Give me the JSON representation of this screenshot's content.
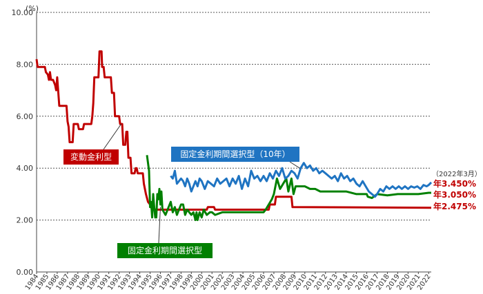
{
  "chart_data": {
    "type": "line",
    "y_unit": "(%)",
    "ylim": [
      0,
      10
    ],
    "yticks": [
      "0.00",
      "2.00",
      "4.00",
      "6.00",
      "8.00",
      "10.00"
    ],
    "xlim": [
      1984,
      2022.25
    ],
    "xticks": [
      "1984",
      "1985",
      "1986",
      "1987",
      "1988",
      "1989",
      "1990",
      "1991",
      "1992",
      "1993",
      "1994",
      "1995",
      "1996",
      "1997",
      "1998",
      "1999",
      "2000",
      "2001",
      "2002",
      "2003",
      "2004",
      "2005",
      "2006",
      "2007",
      "2008",
      "2009",
      "2010",
      "2011",
      "2012",
      "2013",
      "2014",
      "2015",
      "2016",
      "2017",
      "2018",
      "2019",
      "2020",
      "2021",
      "2022"
    ],
    "grid": "horizontal-dashed",
    "series": [
      {
        "name": "変動金利型",
        "color": "#c00000",
        "points": [
          [
            1984.0,
            8.2
          ],
          [
            1984.1,
            7.9
          ],
          [
            1984.8,
            7.9
          ],
          [
            1984.9,
            7.7
          ],
          [
            1985.1,
            7.6
          ],
          [
            1985.2,
            7.4
          ],
          [
            1985.3,
            7.7
          ],
          [
            1985.4,
            7.4
          ],
          [
            1985.6,
            7.4
          ],
          [
            1985.8,
            7.2
          ],
          [
            1985.9,
            7.0
          ],
          [
            1986.0,
            7.5
          ],
          [
            1986.2,
            6.4
          ],
          [
            1986.9,
            6.4
          ],
          [
            1987.0,
            5.8
          ],
          [
            1987.1,
            5.6
          ],
          [
            1987.2,
            5.0
          ],
          [
            1987.5,
            5.0
          ],
          [
            1987.6,
            5.7
          ],
          [
            1988.0,
            5.7
          ],
          [
            1988.1,
            5.5
          ],
          [
            1988.5,
            5.5
          ],
          [
            1988.6,
            5.7
          ],
          [
            1989.3,
            5.7
          ],
          [
            1989.4,
            6.0
          ],
          [
            1989.5,
            6.5
          ],
          [
            1989.6,
            7.5
          ],
          [
            1990.0,
            7.5
          ],
          [
            1990.1,
            8.5
          ],
          [
            1990.3,
            8.5
          ],
          [
            1990.35,
            7.9
          ],
          [
            1990.5,
            7.9
          ],
          [
            1990.6,
            7.5
          ],
          [
            1991.2,
            7.5
          ],
          [
            1991.3,
            6.9
          ],
          [
            1991.5,
            6.9
          ],
          [
            1991.6,
            6.0
          ],
          [
            1992.0,
            6.0
          ],
          [
            1992.1,
            5.7
          ],
          [
            1992.3,
            5.7
          ],
          [
            1992.4,
            4.9
          ],
          [
            1992.6,
            4.9
          ],
          [
            1992.7,
            5.4
          ],
          [
            1992.8,
            5.4
          ],
          [
            1992.9,
            4.4
          ],
          [
            1993.1,
            4.4
          ],
          [
            1993.2,
            3.8
          ],
          [
            1993.5,
            3.8
          ],
          [
            1993.6,
            4.0
          ],
          [
            1993.7,
            4.0
          ],
          [
            1993.8,
            3.8
          ],
          [
            1994.3,
            3.8
          ],
          [
            1994.4,
            3.4
          ],
          [
            1994.6,
            3.0
          ],
          [
            1994.8,
            2.7
          ],
          [
            1995.0,
            2.6
          ],
          [
            1995.2,
            2.4
          ],
          [
            1995.4,
            2.4
          ],
          [
            1995.6,
            2.4
          ],
          [
            1996.0,
            2.4
          ],
          [
            1998.0,
            2.4
          ],
          [
            1999.0,
            2.4
          ],
          [
            2000.5,
            2.4
          ],
          [
            2000.6,
            2.5
          ],
          [
            2001.2,
            2.5
          ],
          [
            2001.3,
            2.4
          ],
          [
            2006.5,
            2.4
          ],
          [
            2006.6,
            2.6
          ],
          [
            2007.1,
            2.6
          ],
          [
            2007.2,
            2.9
          ],
          [
            2008.7,
            2.9
          ],
          [
            2008.8,
            2.5
          ],
          [
            2022.25,
            2.475
          ]
        ]
      },
      {
        "name": "固定金利期間選択型",
        "color": "#008000",
        "points": [
          [
            1994.7,
            4.5
          ],
          [
            1994.9,
            3.9
          ],
          [
            1995.0,
            2.5
          ],
          [
            1995.1,
            2.7
          ],
          [
            1995.2,
            2.1
          ],
          [
            1995.3,
            3.0
          ],
          [
            1995.4,
            2.5
          ],
          [
            1995.5,
            2.1
          ],
          [
            1995.6,
            2.1
          ],
          [
            1995.7,
            3.0
          ],
          [
            1995.8,
            2.8
          ],
          [
            1995.9,
            3.2
          ],
          [
            1996.0,
            2.6
          ],
          [
            1996.1,
            3.1
          ],
          [
            1996.2,
            2.4
          ],
          [
            1996.5,
            2.2
          ],
          [
            1996.7,
            2.4
          ],
          [
            1997.0,
            2.7
          ],
          [
            1997.2,
            2.3
          ],
          [
            1997.4,
            2.5
          ],
          [
            1997.6,
            2.2
          ],
          [
            1997.8,
            2.4
          ],
          [
            1998.0,
            2.6
          ],
          [
            1998.2,
            2.6
          ],
          [
            1998.4,
            2.2
          ],
          [
            1998.6,
            2.4
          ],
          [
            1998.8,
            2.3
          ],
          [
            1999.0,
            2.2
          ],
          [
            1999.2,
            2.3
          ],
          [
            1999.4,
            2.0
          ],
          [
            1999.5,
            2.3
          ],
          [
            1999.6,
            2.0
          ],
          [
            1999.8,
            2.3
          ],
          [
            2000.0,
            2.1
          ],
          [
            2000.2,
            2.4
          ],
          [
            2000.5,
            2.2
          ],
          [
            2000.8,
            2.3
          ],
          [
            2001.0,
            2.3
          ],
          [
            2001.3,
            2.2
          ],
          [
            2002.0,
            2.3
          ],
          [
            2006.0,
            2.3
          ],
          [
            2006.2,
            2.4
          ],
          [
            2006.5,
            2.6
          ],
          [
            2006.8,
            2.8
          ],
          [
            2007.0,
            3.0
          ],
          [
            2007.3,
            3.6
          ],
          [
            2007.6,
            3.2
          ],
          [
            2007.9,
            3.4
          ],
          [
            2008.2,
            3.6
          ],
          [
            2008.4,
            3.1
          ],
          [
            2008.7,
            3.6
          ],
          [
            2008.9,
            3.0
          ],
          [
            2009.1,
            3.3
          ],
          [
            2009.4,
            3.3
          ],
          [
            2010.0,
            3.3
          ],
          [
            2010.5,
            3.2
          ],
          [
            2011.0,
            3.2
          ],
          [
            2011.5,
            3.1
          ],
          [
            2012.0,
            3.1
          ],
          [
            2013.0,
            3.1
          ],
          [
            2014.0,
            3.1
          ],
          [
            2015.0,
            3.0
          ],
          [
            2016.0,
            3.0
          ],
          [
            2016.1,
            2.9
          ],
          [
            2016.5,
            2.85
          ],
          [
            2017.0,
            3.0
          ],
          [
            2018.0,
            2.95
          ],
          [
            2019.0,
            3.0
          ],
          [
            2020.0,
            3.0
          ],
          [
            2021.0,
            3.0
          ],
          [
            2022.0,
            3.05
          ],
          [
            2022.25,
            3.05
          ]
        ]
      },
      {
        "name": "固定金利期間選択型（10年）",
        "color": "#1f74c2",
        "points": [
          [
            1997.0,
            3.7
          ],
          [
            1997.2,
            3.6
          ],
          [
            1997.4,
            3.9
          ],
          [
            1997.6,
            3.4
          ],
          [
            1997.8,
            3.5
          ],
          [
            1998.0,
            3.6
          ],
          [
            1998.2,
            3.5
          ],
          [
            1998.4,
            3.3
          ],
          [
            1998.6,
            3.6
          ],
          [
            1998.8,
            3.4
          ],
          [
            1999.0,
            3.1
          ],
          [
            1999.2,
            3.3
          ],
          [
            1999.4,
            3.5
          ],
          [
            1999.6,
            3.3
          ],
          [
            1999.8,
            3.6
          ],
          [
            2000.0,
            3.5
          ],
          [
            2000.3,
            3.2
          ],
          [
            2000.6,
            3.5
          ],
          [
            2000.9,
            3.4
          ],
          [
            2001.2,
            3.3
          ],
          [
            2001.5,
            3.6
          ],
          [
            2001.8,
            3.4
          ],
          [
            2002.1,
            3.5
          ],
          [
            2002.4,
            3.6
          ],
          [
            2002.7,
            3.3
          ],
          [
            2003.0,
            3.6
          ],
          [
            2003.3,
            3.4
          ],
          [
            2003.6,
            3.7
          ],
          [
            2003.9,
            3.2
          ],
          [
            2004.2,
            3.6
          ],
          [
            2004.5,
            3.3
          ],
          [
            2004.8,
            3.9
          ],
          [
            2005.1,
            3.6
          ],
          [
            2005.4,
            3.7
          ],
          [
            2005.7,
            3.5
          ],
          [
            2006.0,
            3.7
          ],
          [
            2006.3,
            3.5
          ],
          [
            2006.6,
            3.8
          ],
          [
            2006.9,
            3.6
          ],
          [
            2007.2,
            3.9
          ],
          [
            2007.5,
            3.7
          ],
          [
            2007.8,
            4.0
          ],
          [
            2008.1,
            3.6
          ],
          [
            2008.4,
            3.7
          ],
          [
            2008.7,
            3.9
          ],
          [
            2009.0,
            3.8
          ],
          [
            2009.3,
            3.6
          ],
          [
            2009.6,
            4.0
          ],
          [
            2009.9,
            4.2
          ],
          [
            2010.2,
            4.0
          ],
          [
            2010.5,
            4.1
          ],
          [
            2010.8,
            3.9
          ],
          [
            2011.1,
            4.0
          ],
          [
            2011.4,
            3.8
          ],
          [
            2011.7,
            3.9
          ],
          [
            2012.0,
            3.8
          ],
          [
            2012.3,
            3.7
          ],
          [
            2012.6,
            3.6
          ],
          [
            2012.9,
            3.7
          ],
          [
            2013.2,
            3.5
          ],
          [
            2013.5,
            3.8
          ],
          [
            2013.8,
            3.6
          ],
          [
            2014.1,
            3.7
          ],
          [
            2014.4,
            3.5
          ],
          [
            2014.7,
            3.6
          ],
          [
            2015.0,
            3.4
          ],
          [
            2015.3,
            3.3
          ],
          [
            2015.6,
            3.5
          ],
          [
            2015.9,
            3.3
          ],
          [
            2016.2,
            3.1
          ],
          [
            2016.5,
            3.0
          ],
          [
            2016.8,
            2.9
          ],
          [
            2017.0,
            3.0
          ],
          [
            2017.3,
            3.2
          ],
          [
            2017.6,
            3.1
          ],
          [
            2017.9,
            3.3
          ],
          [
            2018.2,
            3.2
          ],
          [
            2018.5,
            3.3
          ],
          [
            2018.8,
            3.2
          ],
          [
            2019.1,
            3.3
          ],
          [
            2019.4,
            3.2
          ],
          [
            2019.7,
            3.3
          ],
          [
            2020.0,
            3.2
          ],
          [
            2020.3,
            3.3
          ],
          [
            2020.6,
            3.25
          ],
          [
            2020.9,
            3.3
          ],
          [
            2021.2,
            3.2
          ],
          [
            2021.5,
            3.35
          ],
          [
            2021.8,
            3.3
          ],
          [
            2022.0,
            3.35
          ],
          [
            2022.25,
            3.45
          ]
        ]
      }
    ],
    "annotations": [
      {
        "text": "変動金利型",
        "color": "#c00000"
      },
      {
        "text": "固定金利期間選択型（10年）",
        "color": "#1f74c2"
      },
      {
        "text": "固定金利期間選択型",
        "color": "#008000"
      }
    ],
    "end_labels": {
      "note": "（2022年3月）",
      "values": [
        "年3.450%",
        "年3.050%",
        "年2.475%"
      ]
    }
  }
}
